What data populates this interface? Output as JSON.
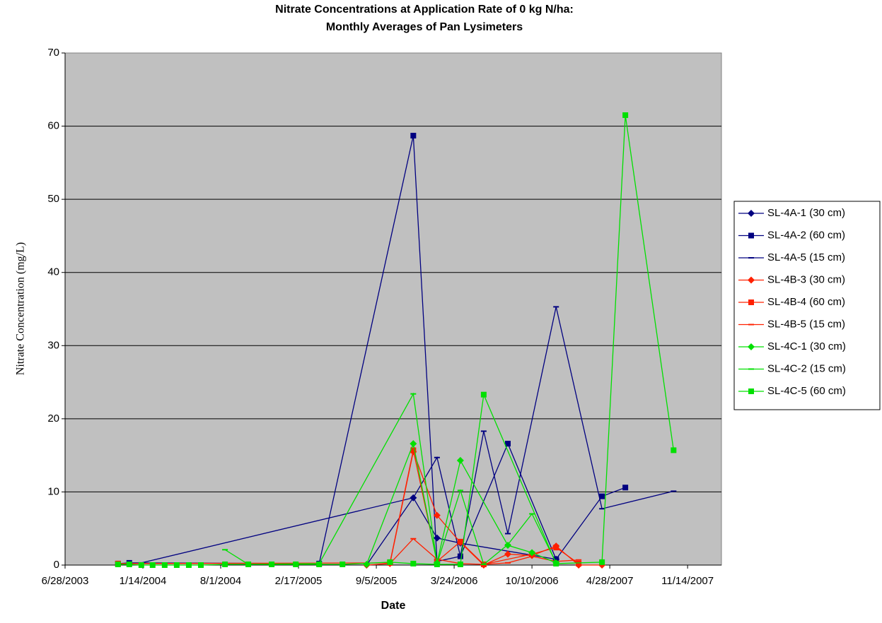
{
  "chart_data": {
    "type": "line",
    "title": [
      "Nitrate Concentrations at Application Rate of 0 kg N/ha:",
      "Monthly Averages of Pan Lysimeters"
    ],
    "x_label": "Date",
    "y_label": "Nitrate Concentration (mg/L)",
    "xlim": [
      "6/28/2003",
      "2/9/2008"
    ],
    "xticks": [
      "6/28/2003",
      "1/14/2004",
      "8/1/2004",
      "2/17/2005",
      "9/5/2005",
      "3/24/2006",
      "10/10/2006",
      "4/28/2007",
      "11/14/2007"
    ],
    "ylim": [
      0,
      70
    ],
    "yticks": [
      0,
      10,
      20,
      30,
      40,
      50,
      60,
      70
    ],
    "grid": true,
    "legend": "right",
    "series": [
      {
        "name": "SL-4A-1 (30 cm)",
        "color": "#000080",
        "marker": "diamond",
        "x": [
          "8/11/2005",
          "12/9/2005",
          "2/8/2006",
          "4/9/2006",
          "12/11/2006"
        ],
        "values": [
          0,
          9.2,
          3.7,
          3.0,
          0.8
        ]
      },
      {
        "name": "SL-4A-2 (60 cm)",
        "color": "#000080",
        "marker": "square",
        "x": [
          "11/11/2003",
          "12/10/2003",
          "4/11/2005",
          "12/9/2005",
          "2/8/2006",
          "4/9/2006",
          "8/9/2006",
          "12/11/2006",
          "4/8/2007",
          "6/7/2007"
        ],
        "values": [
          0.2,
          0.3,
          0.2,
          58.7,
          0.5,
          1.2,
          16.6,
          0.8,
          9.4,
          10.6
        ]
      },
      {
        "name": "SL-4A-5 (15 cm)",
        "color": "#000080",
        "marker": "dash",
        "x": [
          "1/10/2004",
          "12/9/2005",
          "2/8/2006",
          "4/9/2006",
          "6/8/2006",
          "8/9/2006",
          "12/11/2006",
          "4/8/2007",
          "10/9/2007"
        ],
        "values": [
          0.3,
          9.2,
          14.7,
          1.2,
          18.3,
          4.3,
          35.3,
          7.7,
          10.1
        ]
      },
      {
        "name": "SL-4B-3 (30 cm)",
        "color": "#ff2000",
        "marker": "diamond",
        "x": [
          "8/11/2005",
          "10/10/2005",
          "12/9/2005",
          "2/8/2006",
          "4/9/2006",
          "6/8/2006",
          "8/9/2006",
          "10/10/2006",
          "12/11/2006",
          "2/7/2007",
          "4/8/2007"
        ],
        "values": [
          0,
          0.2,
          15.5,
          6.8,
          3.1,
          0,
          1.5,
          1.3,
          2.6,
          0,
          0
        ]
      },
      {
        "name": "SL-4B-4 (60 cm)",
        "color": "#ff2000",
        "marker": "square",
        "x": [
          "11/11/2003",
          "10/10/2005",
          "12/9/2005",
          "2/8/2006",
          "4/9/2006",
          "6/8/2006",
          "10/10/2006",
          "12/11/2006",
          "2/7/2007"
        ],
        "values": [
          0.2,
          0.3,
          15.7,
          0.5,
          3.2,
          0.1,
          1.5,
          2.4,
          0.2
        ]
      },
      {
        "name": "SL-4B-5 (15 cm)",
        "color": "#ff2000",
        "marker": "dash",
        "x": [
          "10/10/2005",
          "12/9/2005",
          "2/8/2006",
          "4/9/2006",
          "6/8/2006",
          "8/9/2006",
          "10/10/2006",
          "12/11/2006",
          "2/7/2007"
        ],
        "values": [
          0.2,
          3.6,
          0.8,
          0.2,
          0.1,
          0.3,
          1.2,
          0.5,
          0.7
        ]
      },
      {
        "name": "SL-4C-1 (30 cm)",
        "color": "#00e000",
        "marker": "diamond",
        "x": [
          "8/11/2005",
          "12/9/2005",
          "2/8/2006",
          "4/9/2006",
          "8/9/2006",
          "10/10/2006",
          "12/11/2006"
        ],
        "values": [
          0.1,
          16.6,
          0.3,
          14.3,
          2.7,
          1.7,
          0.3
        ]
      },
      {
        "name": "SL-4C-2 (15 cm)",
        "color": "#00e000",
        "marker": "dash",
        "x": [
          "8/12/2004",
          "10/11/2004",
          "4/11/2005",
          "12/9/2005",
          "2/8/2006",
          "4/9/2006",
          "6/8/2006",
          "8/9/2006",
          "10/10/2006",
          "12/11/2006"
        ],
        "values": [
          2.1,
          0.1,
          0.2,
          23.4,
          0.2,
          10.2,
          0.1,
          2.8,
          7.0,
          0.3
        ]
      },
      {
        "name": "SL-4C-5 (60 cm)",
        "color": "#00e000",
        "marker": "square",
        "x": [
          "11/11/2003",
          "12/10/2003",
          "1/10/2004",
          "2/8/2004",
          "3/10/2004",
          "4/10/2004",
          "5/11/2004",
          "6/11/2004",
          "8/12/2004",
          "10/11/2004",
          "12/10/2004",
          "2/10/2005",
          "4/11/2005",
          "6/10/2005",
          "10/10/2005",
          "12/9/2005",
          "2/8/2006",
          "4/9/2006",
          "6/8/2006",
          "12/11/2006",
          "4/8/2007",
          "6/7/2007",
          "10/9/2007"
        ],
        "values": [
          0.1,
          0.1,
          0,
          0,
          0,
          0,
          0,
          0,
          0.1,
          0.1,
          0.1,
          0.1,
          0.1,
          0.1,
          0.4,
          0.2,
          0.1,
          0.1,
          23.3,
          0.2,
          0.4,
          61.5,
          15.7
        ]
      }
    ]
  }
}
